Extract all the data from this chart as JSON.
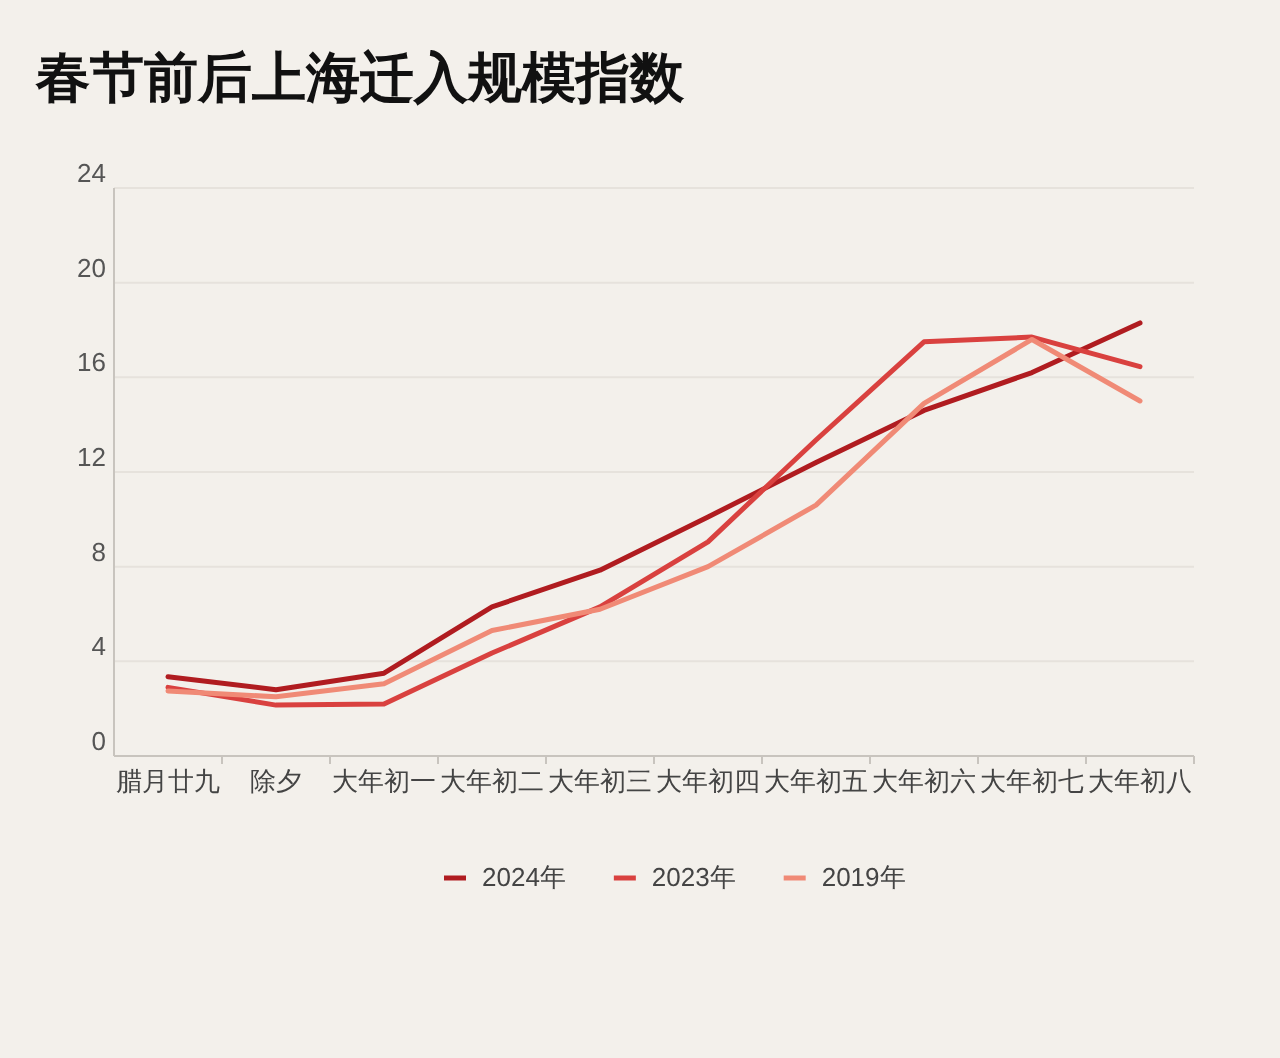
{
  "chart_data": {
    "type": "line",
    "title": "春节前后上海迁入规模指数",
    "categories": [
      "腊月廿九",
      "除夕",
      "大年初一",
      "大年初二",
      "大年初三",
      "大年初四",
      "大年初五",
      "大年初六",
      "大年初七",
      "大年初八"
    ],
    "series": [
      {
        "name": "2024年",
        "color": "#b01c20",
        "values": [
          3.35,
          2.8,
          3.5,
          6.3,
          7.85,
          10.1,
          12.4,
          14.6,
          16.2,
          18.3
        ]
      },
      {
        "name": "2023年",
        "color": "#d9413f",
        "values": [
          2.9,
          2.15,
          2.2,
          4.35,
          6.3,
          9.05,
          13.35,
          17.5,
          17.7,
          16.45
        ]
      },
      {
        "name": "2019年",
        "color": "#f08a76",
        "values": [
          2.75,
          2.5,
          3.05,
          5.3,
          6.2,
          8.0,
          10.6,
          14.9,
          17.6,
          15.0
        ]
      }
    ],
    "ylim": [
      0,
      24
    ],
    "yticks": [
      0,
      4,
      8,
      12,
      16,
      20,
      24
    ],
    "grid": "y",
    "legend": "bottom",
    "marker": "none",
    "line_style": "solid"
  }
}
